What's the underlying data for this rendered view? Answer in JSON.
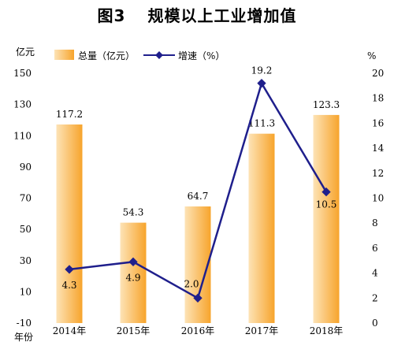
{
  "title": {
    "figure_no": "图3",
    "text": "规模以上工业增加值"
  },
  "chart_data": {
    "type": "bar+line",
    "categories": [
      "2014年",
      "2015年",
      "2016年",
      "2017年",
      "2018年"
    ],
    "x_axis_label": "年份",
    "y_left": {
      "unit_label": "亿元",
      "min": -10,
      "max": 150,
      "ticks": [
        -10,
        10,
        30,
        50,
        70,
        90,
        110,
        130,
        150
      ]
    },
    "y_right": {
      "unit_label": "%",
      "min": 0,
      "max": 20,
      "ticks": [
        0,
        2,
        4,
        6,
        8,
        10,
        12,
        14,
        16,
        18,
        20
      ]
    },
    "series": [
      {
        "name": "总量（亿元）",
        "type": "bar",
        "axis": "left",
        "values": [
          117.2,
          54.3,
          64.7,
          111.3,
          123.3
        ],
        "labels": [
          "117.2",
          "54.3",
          "64.7",
          "111.3",
          "123.3"
        ],
        "color": "#F7A42C",
        "color_light": "#FDE3B6"
      },
      {
        "name": "增速（%）",
        "type": "line",
        "axis": "right",
        "values": [
          4.3,
          4.9,
          2.0,
          19.2,
          10.5
        ],
        "labels": [
          "4.3",
          "4.9",
          "2.0",
          "19.2",
          "10.5"
        ],
        "color": "#1F1F8C"
      }
    ],
    "legend_position": "top-center",
    "grid": false
  }
}
